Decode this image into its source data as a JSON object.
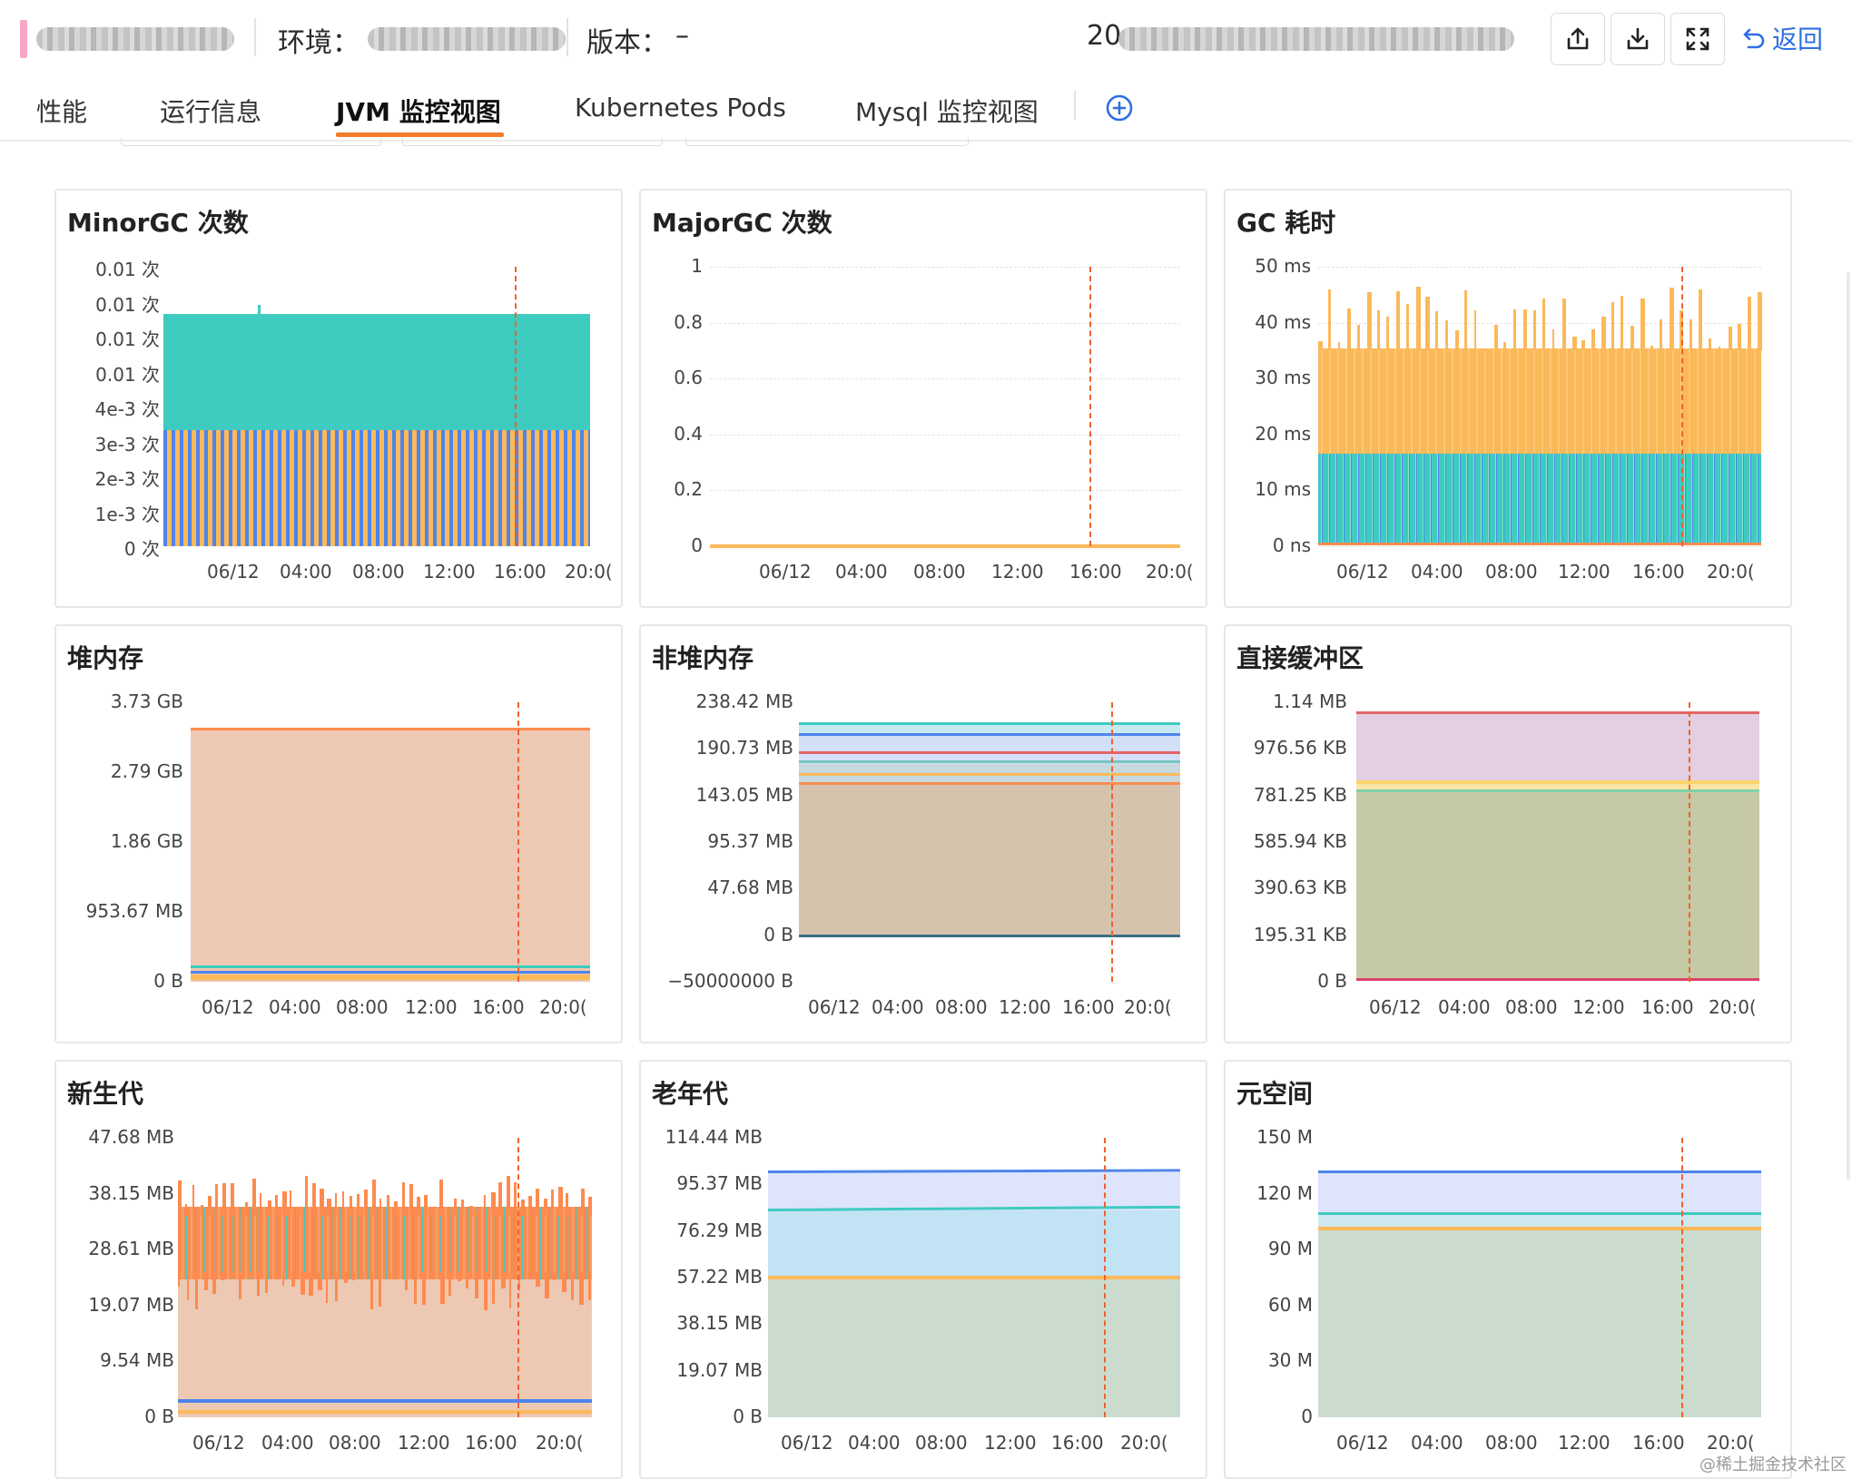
{
  "header": {
    "env_label": "环境：",
    "version_label": "版本：",
    "version_value": "–",
    "time_prefix": "20",
    "back_label": "返回"
  },
  "tabs": [
    {
      "label": "性能"
    },
    {
      "label": "运行信息"
    },
    {
      "label": "JVM 监控视图",
      "active": true
    },
    {
      "label": "Kubernetes Pods"
    },
    {
      "label": "Mysql 监控视图"
    }
  ],
  "colors": {
    "accent": "#f07c2a",
    "teal": "#3ecbc0",
    "blue": "#4f84ea",
    "orange": "#fbb95a",
    "deep_orange": "#fd8b4f",
    "red": "#e46468",
    "marker": "#f0612a",
    "link": "#2f6fe4"
  },
  "panels": [
    {
      "title": "MinorGC 次数",
      "yticks": [
        "0.01 次",
        "0.01 次",
        "0.01 次",
        "0.01 次",
        "4e-3 次",
        "3e-3 次",
        "2e-3 次",
        "1e-3 次",
        "0 次"
      ],
      "xticks": [
        "06/12",
        "04:00",
        "08:00",
        "12:00",
        "16:00",
        "20:0("
      ]
    },
    {
      "title": "MajorGC 次数",
      "yticks": [
        "1",
        "0.8",
        "0.6",
        "0.4",
        "0.2",
        "0"
      ],
      "xticks": [
        "06/12",
        "04:00",
        "08:00",
        "12:00",
        "16:00",
        "20:0("
      ]
    },
    {
      "title": "GC 耗时",
      "yticks": [
        "50 ms",
        "40 ms",
        "30 ms",
        "20 ms",
        "10 ms",
        "0 ns"
      ],
      "xticks": [
        "06/12",
        "04:00",
        "08:00",
        "12:00",
        "16:00",
        "20:0("
      ]
    },
    {
      "title": "堆内存",
      "yticks": [
        "3.73 GB",
        "2.79 GB",
        "1.86 GB",
        "953.67 MB",
        "0 B"
      ],
      "xticks": [
        "06/12",
        "04:00",
        "08:00",
        "12:00",
        "16:00",
        "20:0("
      ]
    },
    {
      "title": "非堆内存",
      "yticks": [
        "238.42 MB",
        "190.73 MB",
        "143.05 MB",
        "95.37 MB",
        "47.68 MB",
        "0 B",
        "−50000000 B"
      ],
      "xticks": [
        "06/12",
        "04:00",
        "08:00",
        "12:00",
        "16:00",
        "20:0("
      ]
    },
    {
      "title": "直接缓冲区",
      "yticks": [
        "1.14 MB",
        "976.56 KB",
        "781.25 KB",
        "585.94 KB",
        "390.63 KB",
        "195.31 KB",
        "0 B"
      ],
      "xticks": [
        "06/12",
        "04:00",
        "08:00",
        "12:00",
        "16:00",
        "20:0("
      ]
    },
    {
      "title": "新生代",
      "yticks": [
        "47.68 MB",
        "38.15 MB",
        "28.61 MB",
        "19.07 MB",
        "9.54 MB",
        "0 B"
      ],
      "xticks": [
        "06/12",
        "04:00",
        "08:00",
        "12:00",
        "16:00",
        "20:0("
      ]
    },
    {
      "title": "老年代",
      "yticks": [
        "114.44 MB",
        "95.37 MB",
        "76.29 MB",
        "57.22 MB",
        "38.15 MB",
        "19.07 MB",
        "0 B"
      ],
      "xticks": [
        "06/12",
        "04:00",
        "08:00",
        "12:00",
        "16:00",
        "20:0("
      ]
    },
    {
      "title": "元空间",
      "yticks": [
        "150 M",
        "120 M",
        "90 M",
        "60 M",
        "30 M",
        "0"
      ],
      "xticks": [
        "06/12",
        "04:00",
        "08:00",
        "12:00",
        "16:00",
        "20:0("
      ]
    }
  ],
  "watermark": "@稀土掘金技术社区"
}
